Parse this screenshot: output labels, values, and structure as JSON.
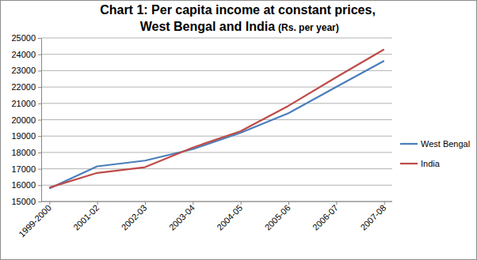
{
  "chart_data": {
    "type": "line",
    "title": "Chart 1: Per capita income at constant prices,\nWest Bengal and India",
    "subtitle": "(Rs. per year)",
    "categories": [
      "1999-2000",
      "2001-02",
      "2002-03",
      "2003-04",
      "2004-05",
      "2005-06",
      "2006-07",
      "2007-08"
    ],
    "series": [
      {
        "name": "West Bengal",
        "color": "#4a7ebb",
        "values": [
          15800,
          17150,
          17500,
          18200,
          19200,
          20400,
          22000,
          23600
        ]
      },
      {
        "name": "India",
        "color": "#be4b48",
        "values": [
          15850,
          16750,
          17100,
          18300,
          19300,
          20850,
          22600,
          24300
        ]
      }
    ],
    "ylim": [
      15000,
      25000
    ],
    "yticks": [
      15000,
      16000,
      17000,
      18000,
      19000,
      20000,
      21000,
      22000,
      23000,
      24000,
      25000
    ],
    "grid": true,
    "legend": "right"
  }
}
